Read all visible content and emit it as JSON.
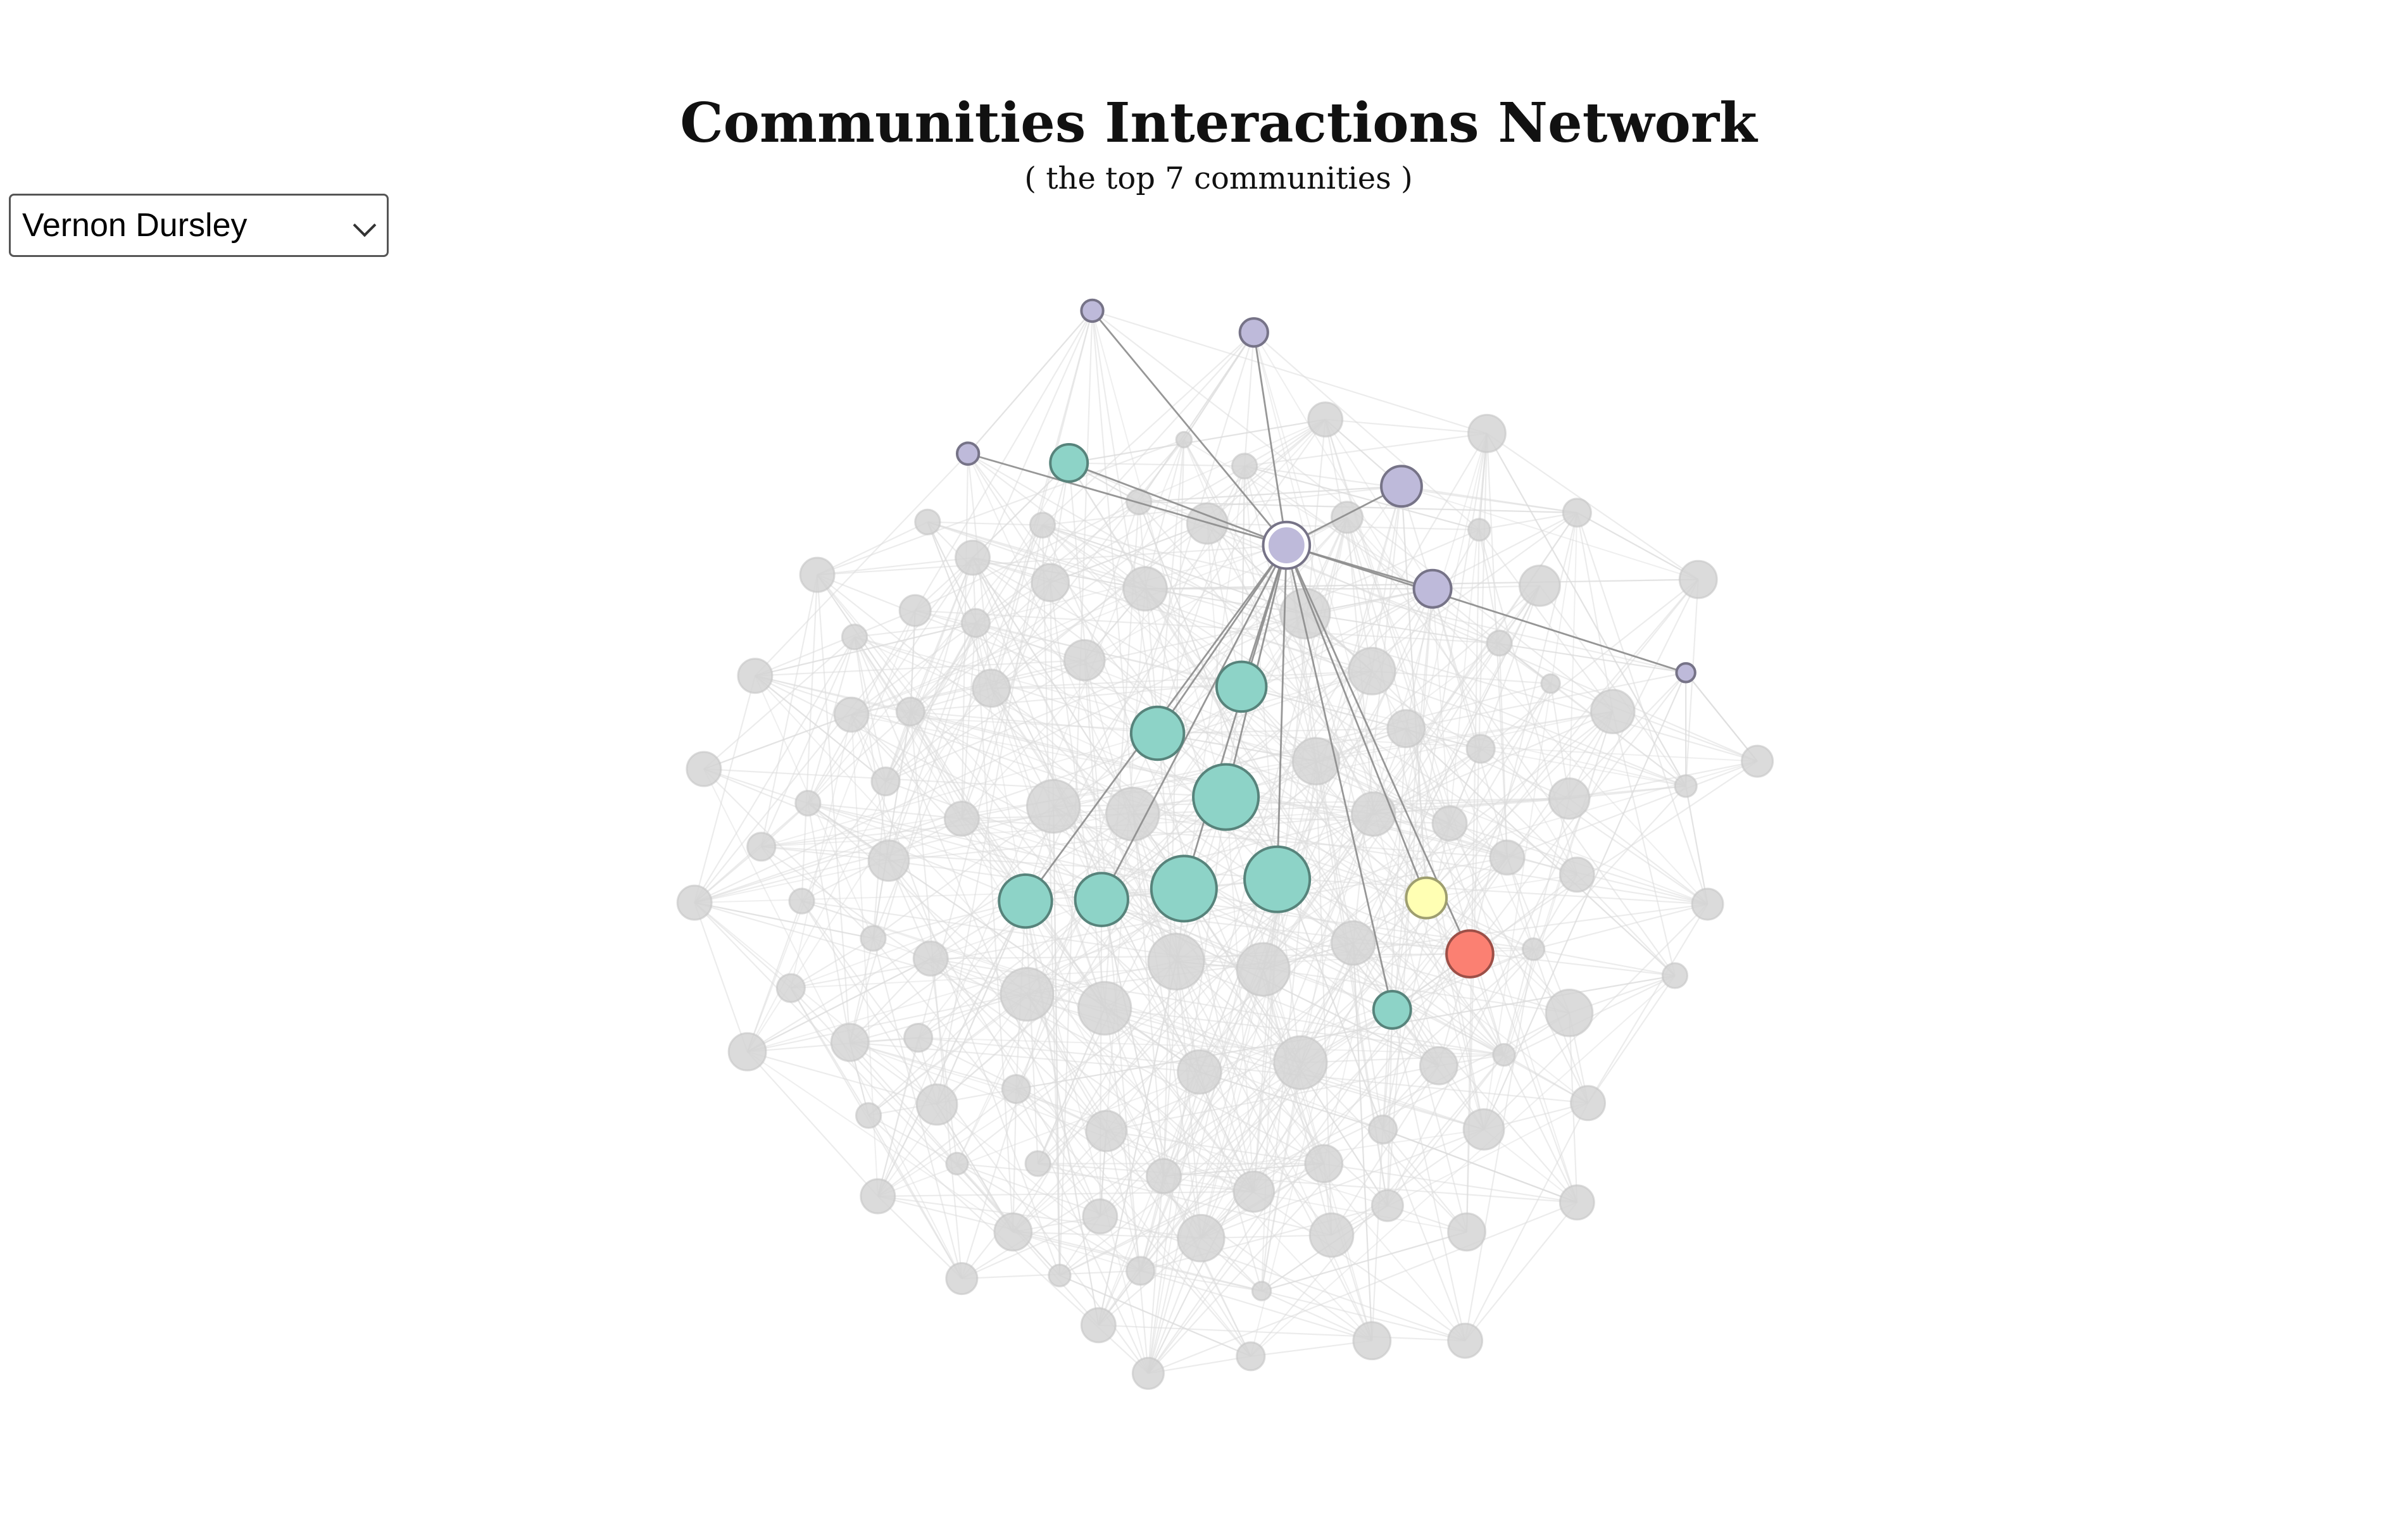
{
  "header": {
    "title": "Communities Interactions Network",
    "subtitle": "( the top 7 communities )"
  },
  "character_select": {
    "selected": "Vernon Dursley",
    "options": [
      "Vernon Dursley"
    ]
  },
  "colors": {
    "inactive_node": "#d3d3d3",
    "inactive_edge": "#dcdcdc",
    "highlight_edge": "#8c8c8c",
    "community_teal": "#8dd3c7",
    "community_purple": "#bebada",
    "community_yellow": "#ffffb3",
    "community_red": "#fb8072"
  },
  "icons": [
    "chevron-down-icon"
  ]
}
